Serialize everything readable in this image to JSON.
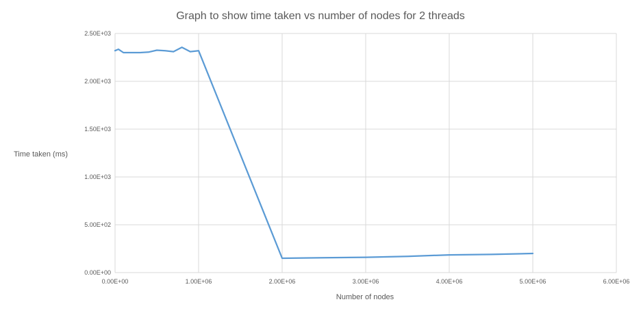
{
  "chart_data": {
    "type": "line",
    "title": "Graph to show time taken vs number of nodes for 2 threads",
    "xlabel": "Number of nodes",
    "ylabel": "Time taken (ms)",
    "xlim": [
      0,
      6000000
    ],
    "ylim": [
      0,
      2500
    ],
    "x_ticks": [
      {
        "value": 0,
        "label": "0.00E+00"
      },
      {
        "value": 1000000,
        "label": "1.00E+06"
      },
      {
        "value": 2000000,
        "label": "2.00E+06"
      },
      {
        "value": 3000000,
        "label": "3.00E+06"
      },
      {
        "value": 4000000,
        "label": "4.00E+06"
      },
      {
        "value": 5000000,
        "label": "5.00E+06"
      },
      {
        "value": 6000000,
        "label": "6.00E+06"
      }
    ],
    "y_ticks": [
      {
        "value": 0,
        "label": "0.00E+00"
      },
      {
        "value": 500,
        "label": "5.00E+02"
      },
      {
        "value": 1000,
        "label": "1.00E+03"
      },
      {
        "value": 1500,
        "label": "1.50E+03"
      },
      {
        "value": 2000,
        "label": "2.00E+03"
      },
      {
        "value": 2500,
        "label": "2.50E+03"
      }
    ],
    "grid": true,
    "legend": "none",
    "series": [
      {
        "color": "#5b9bd5",
        "points": [
          [
            0,
            2320
          ],
          [
            40000,
            2335
          ],
          [
            100000,
            2300
          ],
          [
            200000,
            2300
          ],
          [
            300000,
            2300
          ],
          [
            400000,
            2305
          ],
          [
            500000,
            2325
          ],
          [
            600000,
            2320
          ],
          [
            700000,
            2310
          ],
          [
            800000,
            2355
          ],
          [
            900000,
            2310
          ],
          [
            1000000,
            2320
          ],
          [
            2000000,
            150
          ],
          [
            2500000,
            155
          ],
          [
            3000000,
            160
          ],
          [
            3500000,
            170
          ],
          [
            4000000,
            185
          ],
          [
            4500000,
            190
          ],
          [
            5000000,
            200
          ]
        ]
      }
    ]
  }
}
